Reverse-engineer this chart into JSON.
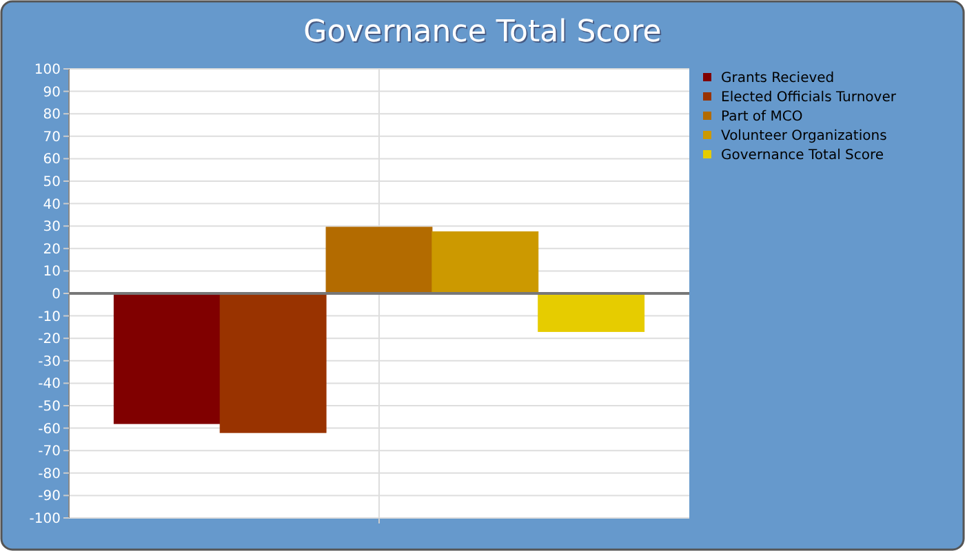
{
  "chart_data": {
    "type": "bar",
    "title": "Governance Total Score",
    "categories": [
      null
    ],
    "series": [
      {
        "name": "Grants Recieved",
        "color": "#800000",
        "values": [
          -58
        ]
      },
      {
        "name": "Elected Officials Turnover",
        "color": "#993300",
        "values": [
          -62
        ]
      },
      {
        "name": "Part of MCO",
        "color": "#b36b00",
        "values": [
          29.5
        ]
      },
      {
        "name": "Volunteer Organizations",
        "color": "#cc9900",
        "values": [
          27.5
        ]
      },
      {
        "name": "Governance Total Score",
        "color": "#e6cc00",
        "values": [
          -17
        ]
      }
    ],
    "ylim": [
      -100,
      100
    ],
    "yticks": [
      -100,
      -90,
      -80,
      -70,
      -60,
      -50,
      -40,
      -30,
      -20,
      -10,
      0,
      10,
      20,
      30,
      40,
      50,
      60,
      70,
      80,
      90,
      100
    ],
    "grid": true,
    "legend": "top right"
  }
}
